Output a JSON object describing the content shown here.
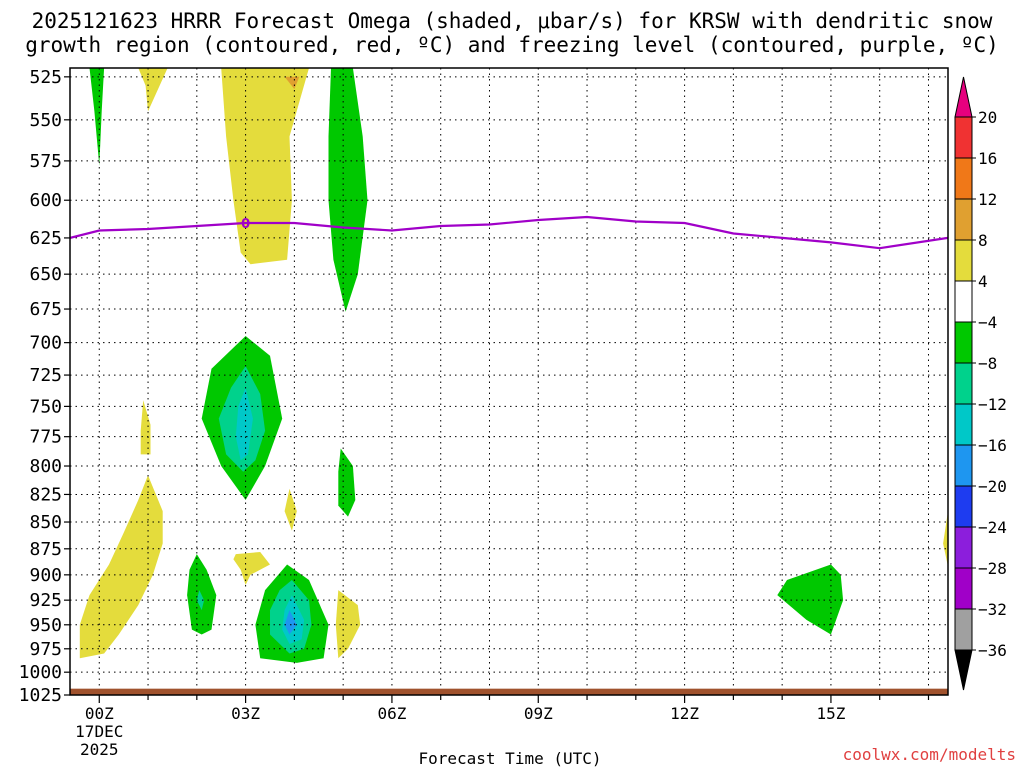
{
  "chart_data": {
    "type": "filled-contour",
    "title_line1": "2025121623 HRRR Forecast Omega (shaded, μbar/s) for KRSW with dendritic snow",
    "title_line2": "growth region (contoured, red, ºC) and freezing level (contoured, purple, ºC)",
    "xlabel": "Forecast Time (UTC)",
    "x_ticks": [
      {
        "hour": 0,
        "label": "00Z"
      },
      {
        "hour": 3,
        "label": "03Z"
      },
      {
        "hour": 6,
        "label": "06Z"
      },
      {
        "hour": 9,
        "label": "09Z"
      },
      {
        "hour": 12,
        "label": "12Z"
      },
      {
        "hour": 15,
        "label": "15Z"
      }
    ],
    "x_date_line1": "17DEC",
    "x_date_line2": "2025",
    "xlim": [
      -0.6,
      17.4
    ],
    "ylabel_ticks": [
      525,
      550,
      575,
      600,
      625,
      650,
      675,
      700,
      725,
      750,
      775,
      800,
      825,
      850,
      875,
      900,
      925,
      950,
      975,
      1000,
      1025
    ],
    "ylim_hPa": [
      1025,
      520
    ],
    "colorbar": {
      "labels": [
        "20",
        "16",
        "12",
        "8",
        "4",
        "−4",
        "−8",
        "−12",
        "−16",
        "−20",
        "−24",
        "−28",
        "−32",
        "−36"
      ],
      "bins": [
        {
          "range": "16 to 20",
          "color": "#f03232"
        },
        {
          "range": "12 to 16",
          "color": "#f07818"
        },
        {
          "range": "8 to 12",
          "color": "#e0a030"
        },
        {
          "range": "4 to 8",
          "color": "#e4dc3c"
        },
        {
          "range": "-4 to 4",
          "color": "#ffffff"
        },
        {
          "range": "-8 to -4",
          "color": "#00c800"
        },
        {
          "range": "-12 to -8",
          "color": "#00d28c"
        },
        {
          "range": "-16 to -12",
          "color": "#00c8c8"
        },
        {
          "range": "-20 to -16",
          "color": "#1e96f0"
        },
        {
          "range": "-24 to -20",
          "color": "#1e3cf0"
        },
        {
          "range": "-28 to -24",
          "color": "#8c1edc"
        },
        {
          "range": "-32 to -28",
          "color": "#a000c8"
        },
        {
          "range": "-36 to -32",
          "color": "#a0a0a0"
        }
      ],
      "top_arrow_color": "#e6007e",
      "bottom_arrow_color": "#000000"
    },
    "freezing_level": {
      "label": "0",
      "color": "#a000c8",
      "points": [
        [
          -0.6,
          625
        ],
        [
          0,
          620
        ],
        [
          1,
          619
        ],
        [
          2,
          617
        ],
        [
          3,
          615
        ],
        [
          4,
          615
        ],
        [
          5,
          618
        ],
        [
          6,
          620
        ],
        [
          7,
          617
        ],
        [
          8,
          616
        ],
        [
          9,
          613
        ],
        [
          10,
          611
        ],
        [
          11,
          614
        ],
        [
          12,
          615
        ],
        [
          13,
          622
        ],
        [
          14,
          625
        ],
        [
          15,
          628
        ],
        [
          16,
          632
        ],
        [
          17.4,
          625
        ]
      ]
    },
    "omega_regions": [
      {
        "id": "pos-top-1",
        "value": 6,
        "points": [
          [
            0.8,
            520
          ],
          [
            1.4,
            520
          ],
          [
            1.0,
            545
          ],
          [
            0.95,
            530
          ]
        ]
      },
      {
        "id": "pos-top-2",
        "value": 6,
        "points": [
          [
            2.5,
            520
          ],
          [
            4.3,
            520
          ],
          [
            3.9,
            560
          ],
          [
            3.95,
            600
          ],
          [
            3.85,
            640
          ],
          [
            3.1,
            643
          ],
          [
            2.9,
            635
          ],
          [
            2.75,
            600
          ],
          [
            2.6,
            560
          ]
        ]
      },
      {
        "id": "pos-top-2-core",
        "value": 9,
        "points": [
          [
            3.8,
            525
          ],
          [
            4.1,
            525
          ],
          [
            4.0,
            532
          ]
        ]
      },
      {
        "id": "neg-top-1",
        "value": -6,
        "points": [
          [
            -0.2,
            520
          ],
          [
            0.1,
            520
          ],
          [
            0.05,
            545
          ],
          [
            0.0,
            578
          ],
          [
            -0.1,
            545
          ]
        ]
      },
      {
        "id": "neg-top-2",
        "value": -6,
        "points": [
          [
            4.75,
            520
          ],
          [
            5.2,
            520
          ],
          [
            5.4,
            560
          ],
          [
            5.5,
            600
          ],
          [
            5.3,
            650
          ],
          [
            5.05,
            677
          ],
          [
            4.8,
            640
          ],
          [
            4.7,
            600
          ],
          [
            4.7,
            560
          ]
        ]
      },
      {
        "id": "neg-mid-1",
        "value": -6,
        "points": [
          [
            3.0,
            695
          ],
          [
            3.5,
            710
          ],
          [
            3.75,
            760
          ],
          [
            3.4,
            800
          ],
          [
            3.0,
            830
          ],
          [
            2.5,
            800
          ],
          [
            2.1,
            760
          ],
          [
            2.3,
            720
          ]
        ]
      },
      {
        "id": "neg-mid-1a",
        "value": -10,
        "points": [
          [
            3.0,
            718
          ],
          [
            3.3,
            740
          ],
          [
            3.4,
            770
          ],
          [
            3.2,
            795
          ],
          [
            2.95,
            805
          ],
          [
            2.6,
            790
          ],
          [
            2.45,
            760
          ],
          [
            2.7,
            735
          ]
        ]
      },
      {
        "id": "neg-mid-1b",
        "value": -14,
        "points": [
          [
            3.0,
            735
          ],
          [
            3.15,
            760
          ],
          [
            3.05,
            790
          ],
          [
            2.9,
            795
          ],
          [
            2.8,
            775
          ],
          [
            2.85,
            750
          ]
        ]
      },
      {
        "id": "neg-mid-2",
        "value": -6,
        "points": [
          [
            4.95,
            785
          ],
          [
            5.2,
            800
          ],
          [
            5.25,
            830
          ],
          [
            5.1,
            845
          ],
          [
            4.9,
            835
          ],
          [
            4.9,
            805
          ]
        ]
      },
      {
        "id": "pos-mid-1",
        "value": 6,
        "points": [
          [
            0.9,
            745
          ],
          [
            1.05,
            765
          ],
          [
            1.05,
            790
          ],
          [
            0.85,
            790
          ],
          [
            0.85,
            770
          ]
        ]
      },
      {
        "id": "pos-mid-2",
        "value": 6,
        "points": [
          [
            3.9,
            820
          ],
          [
            4.05,
            840
          ],
          [
            3.95,
            858
          ],
          [
            3.8,
            840
          ]
        ]
      },
      {
        "id": "pos-low-big",
        "value": 6,
        "points": [
          [
            1.0,
            808
          ],
          [
            1.3,
            840
          ],
          [
            1.3,
            870
          ],
          [
            1.1,
            900
          ],
          [
            0.8,
            930
          ],
          [
            0.4,
            960
          ],
          [
            0.1,
            980
          ],
          [
            -0.4,
            985
          ],
          [
            -0.4,
            950
          ],
          [
            -0.2,
            920
          ],
          [
            0.2,
            890
          ],
          [
            0.5,
            860
          ],
          [
            0.8,
            830
          ]
        ]
      },
      {
        "id": "pos-low-2",
        "value": 6,
        "points": [
          [
            2.8,
            880
          ],
          [
            3.3,
            878
          ],
          [
            3.5,
            890
          ],
          [
            3.1,
            900
          ],
          [
            3.0,
            910
          ],
          [
            2.9,
            895
          ],
          [
            2.75,
            885
          ]
        ]
      },
      {
        "id": "pos-low-3",
        "value": 6,
        "points": [
          [
            4.9,
            915
          ],
          [
            5.3,
            930
          ],
          [
            5.35,
            950
          ],
          [
            5.1,
            975
          ],
          [
            4.9,
            985
          ],
          [
            4.85,
            950
          ]
        ]
      },
      {
        "id": "pos-right",
        "value": 6,
        "points": [
          [
            17.4,
            840
          ],
          [
            17.7,
            840
          ],
          [
            17.7,
            890
          ],
          [
            17.4,
            892
          ],
          [
            17.3,
            870
          ]
        ]
      },
      {
        "id": "neg-low-1",
        "value": -6,
        "points": [
          [
            2.0,
            880
          ],
          [
            2.2,
            895
          ],
          [
            2.4,
            920
          ],
          [
            2.3,
            955
          ],
          [
            2.1,
            960
          ],
          [
            1.9,
            955
          ],
          [
            1.8,
            920
          ],
          [
            1.85,
            895
          ]
        ]
      },
      {
        "id": "neg-low-1a",
        "value": -10,
        "points": [
          [
            2.05,
            915
          ],
          [
            2.15,
            925
          ],
          [
            2.1,
            935
          ],
          [
            2.0,
            925
          ]
        ]
      },
      {
        "id": "neg-low-2",
        "value": -6,
        "points": [
          [
            3.85,
            890
          ],
          [
            4.3,
            905
          ],
          [
            4.7,
            950
          ],
          [
            4.6,
            985
          ],
          [
            4.05,
            990
          ],
          [
            3.3,
            985
          ],
          [
            3.2,
            950
          ],
          [
            3.4,
            915
          ]
        ]
      },
      {
        "id": "neg-low-2a",
        "value": -10,
        "points": [
          [
            3.95,
            905
          ],
          [
            4.3,
            925
          ],
          [
            4.35,
            950
          ],
          [
            4.2,
            975
          ],
          [
            3.9,
            980
          ],
          [
            3.5,
            960
          ],
          [
            3.5,
            935
          ],
          [
            3.7,
            915
          ]
        ]
      },
      {
        "id": "neg-low-2b",
        "value": -14,
        "points": [
          [
            3.95,
            920
          ],
          [
            4.2,
            945
          ],
          [
            4.15,
            965
          ],
          [
            3.9,
            970
          ],
          [
            3.75,
            955
          ],
          [
            3.8,
            935
          ]
        ]
      },
      {
        "id": "neg-low-2c",
        "value": -18,
        "points": [
          [
            3.9,
            935
          ],
          [
            4.05,
            950
          ],
          [
            3.9,
            960
          ],
          [
            3.8,
            950
          ]
        ]
      },
      {
        "id": "neg-right",
        "value": -6,
        "points": [
          [
            15.0,
            890
          ],
          [
            15.2,
            900
          ],
          [
            15.25,
            925
          ],
          [
            15.0,
            960
          ],
          [
            14.5,
            945
          ],
          [
            13.9,
            920
          ],
          [
            14.1,
            905
          ]
        ]
      }
    ],
    "ground": {
      "top_hPa": 1018,
      "color": "#a0522d"
    },
    "watermark": "coolwx.com/modelts"
  }
}
